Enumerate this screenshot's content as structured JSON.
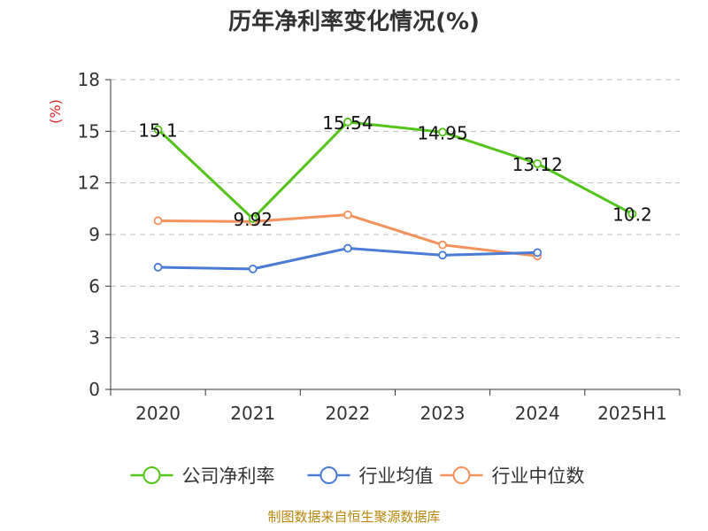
{
  "chart_data": {
    "type": "line",
    "title": "历年净利率变化情况(%)",
    "xlabel": "",
    "ylabel": "(%)",
    "categories": [
      "2020",
      "2021",
      "2022",
      "2023",
      "2024",
      "2025H1"
    ],
    "ylim": [
      0,
      18
    ],
    "yticks": [
      0,
      3,
      6,
      9,
      12,
      15,
      18
    ],
    "grid": "horizontal dashed",
    "legend_position": "bottom",
    "series": [
      {
        "name": "公司净利率",
        "color": "#52c41a",
        "values": [
          15.1,
          9.92,
          15.54,
          14.95,
          13.12,
          10.2
        ],
        "labels": [
          "15.1",
          "9.92",
          "15.54",
          "14.95",
          "13.12",
          "10.2"
        ],
        "show_labels": true
      },
      {
        "name": "行业均值",
        "color": "#4a7bd5",
        "values": [
          7.1,
          7.0,
          8.2,
          7.8,
          7.95,
          null
        ],
        "show_labels": false
      },
      {
        "name": "行业中位数",
        "color": "#f4925c",
        "values": [
          9.8,
          9.75,
          10.15,
          8.4,
          7.75,
          null
        ],
        "show_labels": false
      }
    ],
    "source": "制图数据来自恒生聚源数据库"
  }
}
